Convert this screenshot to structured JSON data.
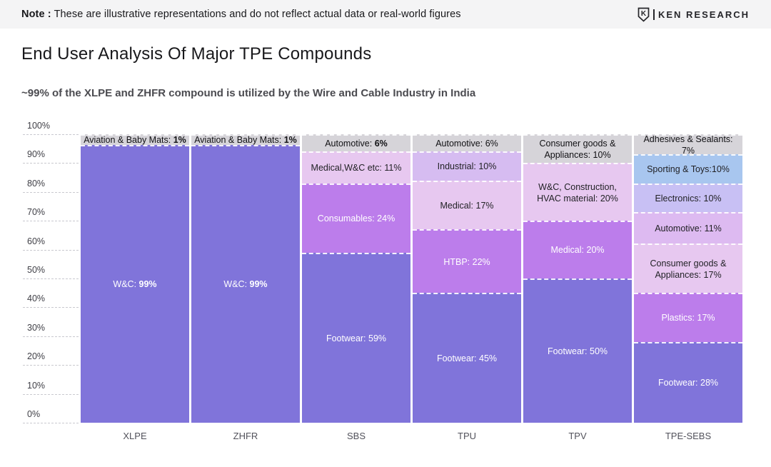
{
  "note": {
    "label": "Note :",
    "text": "These are illustrative representations and do not reflect actual data or real-world figures"
  },
  "brand": {
    "name": "KEN RESEARCH",
    "icon": "shield-k-icon",
    "icon_letter": "K"
  },
  "title": "End User Analysis Of Major TPE Compounds",
  "subtitle": "~99% of the XLPE and ZHFR compound is utilized by the Wire and Cable Industry in India",
  "chart_data": {
    "type": "bar",
    "stacked": true,
    "unit": "%",
    "ylim": [
      0,
      100
    ],
    "grid": "dashed, left gutter only",
    "legend": "none (labels inside segments)",
    "yticks": [
      "0%",
      "10%",
      "20%",
      "30%",
      "40%",
      "50%",
      "60%",
      "70%",
      "80%",
      "90%",
      "100%"
    ],
    "categories": [
      "XLPE",
      "ZHFR",
      "SBS",
      "TPU",
      "TPV",
      "TPE-SEBS"
    ],
    "palette": {
      "deep": {
        "bg": "#8074DA",
        "text": "#ffffff"
      },
      "medium": {
        "bg": "#BC7DEB",
        "text": "#ffffff"
      },
      "pink": {
        "bg": "#E7C8F0",
        "text": "#222226"
      },
      "lavender": {
        "bg": "#D6BCF1",
        "text": "#222226"
      },
      "gray": {
        "bg": "#D6D4D9",
        "text": "#111114"
      },
      "blue": {
        "bg": "#A8C6EF",
        "text": "#222226"
      },
      "periwinkle": {
        "bg": "#C8C0F4",
        "text": "#222226"
      },
      "lilac": {
        "bg": "#DDBAF1",
        "text": "#222226"
      }
    },
    "columns": [
      {
        "category": "XLPE",
        "segments": [
          {
            "label": "Aviation & Baby Mats: 1%",
            "name": "Aviation & Baby Mats",
            "value": 1,
            "color": "gray",
            "bold_value": true
          },
          {
            "label": "W&C: 99%",
            "name": "W&C",
            "value": 99,
            "color": "deep",
            "bold_value": true
          }
        ]
      },
      {
        "category": "ZHFR",
        "segments": [
          {
            "label": "Aviation & Baby Mats: 1%",
            "name": "Aviation & Baby Mats",
            "value": 1,
            "color": "gray",
            "bold_value": true
          },
          {
            "label": "W&C: 99%",
            "name": "W&C",
            "value": 99,
            "color": "deep",
            "bold_value": true
          }
        ]
      },
      {
        "category": "SBS",
        "segments": [
          {
            "label": "Automotive: 6%",
            "name": "Automotive",
            "value": 6,
            "color": "gray",
            "bold_value": true
          },
          {
            "label": "Medical,W&C etc: 11%",
            "name": "Medical, W&C etc",
            "value": 11,
            "color": "pink"
          },
          {
            "label": "Consumables: 24%",
            "name": "Consumables",
            "value": 24,
            "color": "medium"
          },
          {
            "label": "Footwear: 59%",
            "name": "Footwear",
            "value": 59,
            "color": "deep"
          }
        ]
      },
      {
        "category": "TPU",
        "segments": [
          {
            "label": "Automotive: 6%",
            "name": "Automotive",
            "value": 6,
            "color": "gray"
          },
          {
            "label": "Industrial: 10%",
            "name": "Industrial",
            "value": 10,
            "color": "lavender"
          },
          {
            "label": "Medical: 17%",
            "name": "Medical",
            "value": 17,
            "color": "pink"
          },
          {
            "label": "HTBP: 22%",
            "name": "HTBP",
            "value": 22,
            "color": "medium"
          },
          {
            "label": "Footwear: 45%",
            "name": "Footwear",
            "value": 45,
            "color": "deep"
          }
        ]
      },
      {
        "category": "TPV",
        "segments": [
          {
            "label": "Consumer goods & Appliances: 10%",
            "name": "Consumer goods & Appliances",
            "value": 10,
            "color": "gray"
          },
          {
            "label": "W&C, Construction, HVAC material: 20%",
            "name": "W&C, Construction, HVAC material",
            "value": 20,
            "color": "pink"
          },
          {
            "label": "Medical: 20%",
            "name": "Medical",
            "value": 20,
            "color": "medium"
          },
          {
            "label": "Footwear: 50%",
            "name": "Footwear",
            "value": 50,
            "color": "deep"
          }
        ]
      },
      {
        "category": "TPE-SEBS",
        "segments": [
          {
            "label": "Adhesives & Sealants: 7%",
            "name": "Adhesives & Sealants",
            "value": 7,
            "color": "gray"
          },
          {
            "label": "Sporting & Toys:10%",
            "name": "Sporting & Toys",
            "value": 10,
            "color": "blue"
          },
          {
            "label": "Electronics: 10%",
            "name": "Electronics",
            "value": 10,
            "color": "periwinkle"
          },
          {
            "label": "Automotive: 11%",
            "name": "Automotive",
            "value": 11,
            "color": "lilac"
          },
          {
            "label": "Consumer goods & Appliances: 17%",
            "name": "Consumer goods & Appliances",
            "value": 17,
            "color": "pink"
          },
          {
            "label": "Plastics: 17%",
            "name": "Plastics",
            "value": 17,
            "color": "medium"
          },
          {
            "label": "Footwear: 28%",
            "name": "Footwear",
            "value": 28,
            "color": "deep"
          }
        ]
      }
    ]
  }
}
